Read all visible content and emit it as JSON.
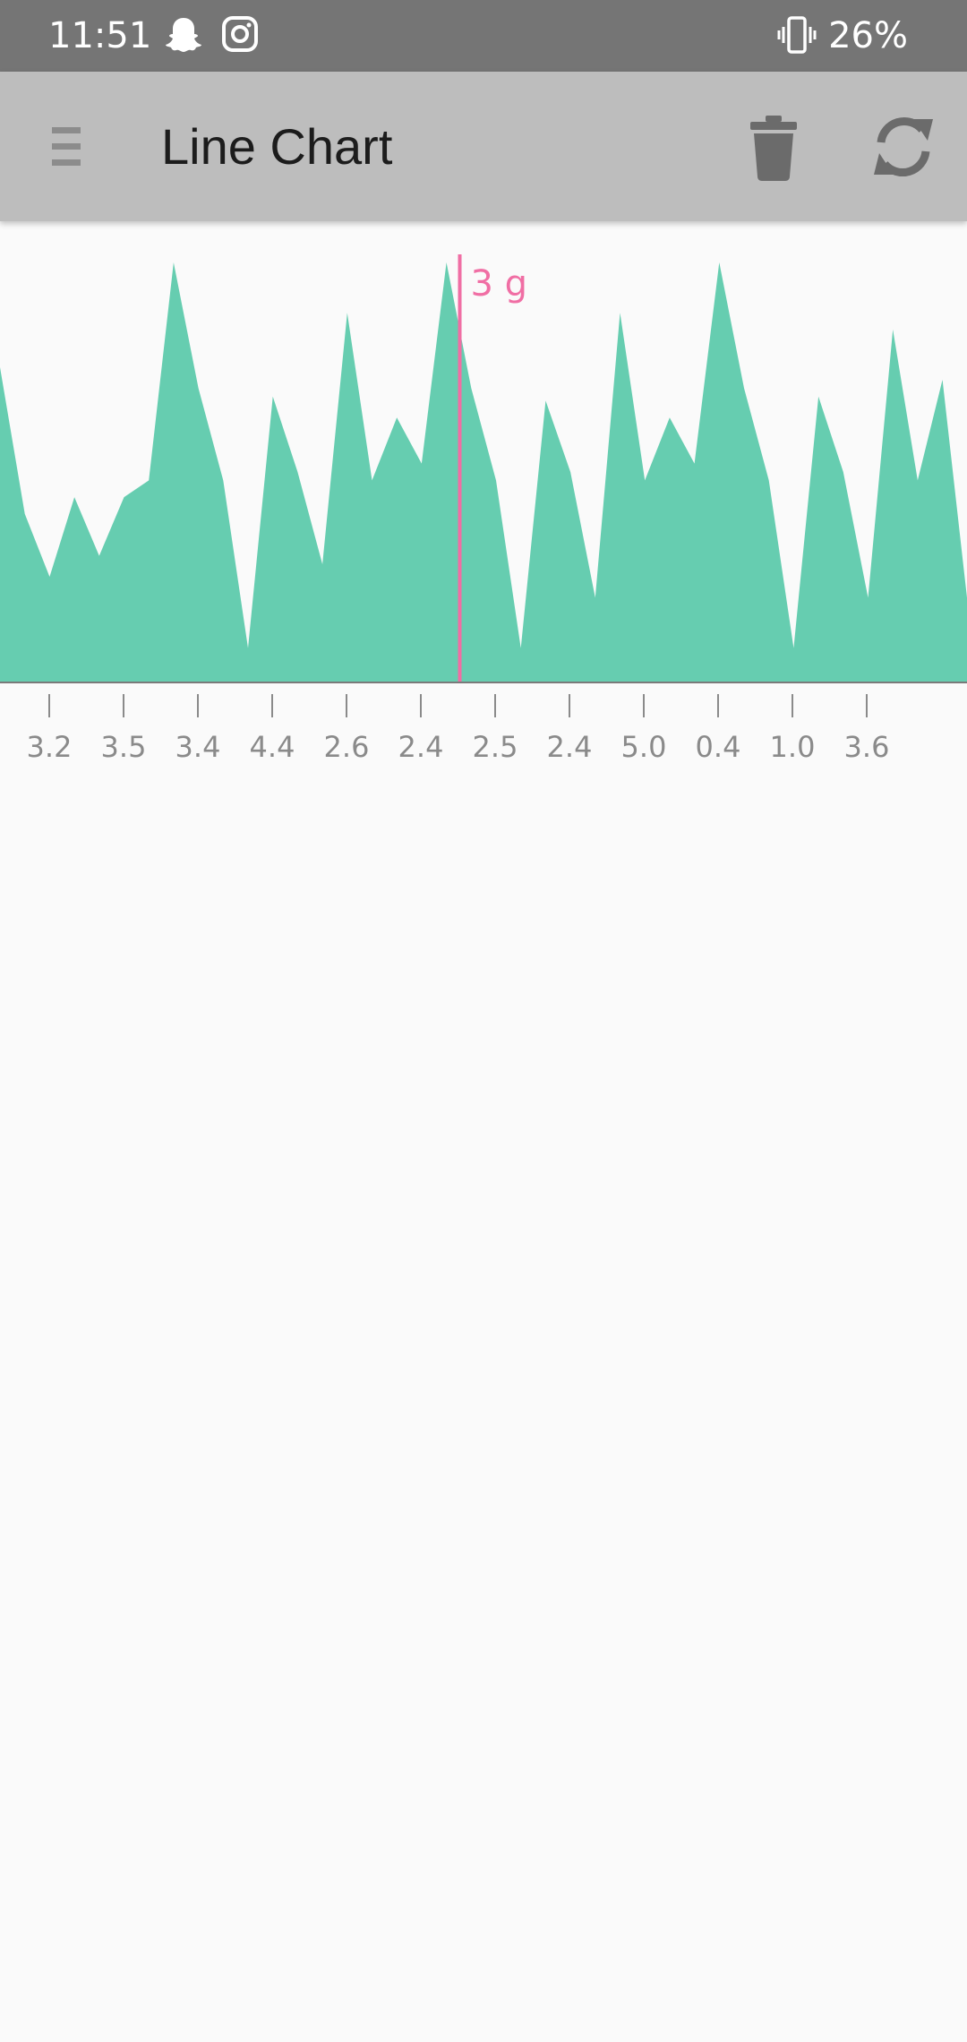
{
  "status_bar": {
    "time": "11:51",
    "battery": "26%",
    "icons": [
      "snapchat-icon",
      "instagram-icon",
      "vibrate-icon"
    ]
  },
  "app_bar": {
    "title": "Line Chart",
    "icons": [
      "menu-icon",
      "trash-icon",
      "refresh-icon"
    ]
  },
  "colors": {
    "status_bar": "#757575",
    "app_bar": "#bdbdbd",
    "area_fill": "#66cdb0",
    "marker": "#f06ea4",
    "axis_text": "#8a8a8a",
    "background": "#fafafa"
  },
  "chart_data": {
    "type": "area",
    "categories": [
      "3.2",
      "3.5",
      "3.4",
      "4.4",
      "2.6",
      "2.4",
      "2.5",
      "2.4",
      "5.0",
      "0.4",
      "1.0",
      "3.6"
    ],
    "y_values": [
      0.75,
      0.4,
      0.25,
      0.44,
      0.3,
      0.44,
      0.48,
      1.0,
      0.7,
      0.48,
      0.08,
      0.68,
      0.5,
      0.28,
      0.88,
      0.48,
      0.63,
      0.52,
      1.0,
      0.7,
      0.48,
      0.08,
      0.67,
      0.5,
      0.2,
      0.88,
      0.48,
      0.63,
      0.52,
      1.0,
      0.7,
      0.48,
      0.08,
      0.68,
      0.5,
      0.2,
      0.84,
      0.48,
      0.72,
      0.2,
      0.5,
      0.4,
      0.28
    ],
    "y_range": [
      0,
      1
    ],
    "marker": {
      "label": "3 g",
      "position_between": [
        "2.4",
        "2.5"
      ]
    },
    "grid": false,
    "legend": "none"
  }
}
